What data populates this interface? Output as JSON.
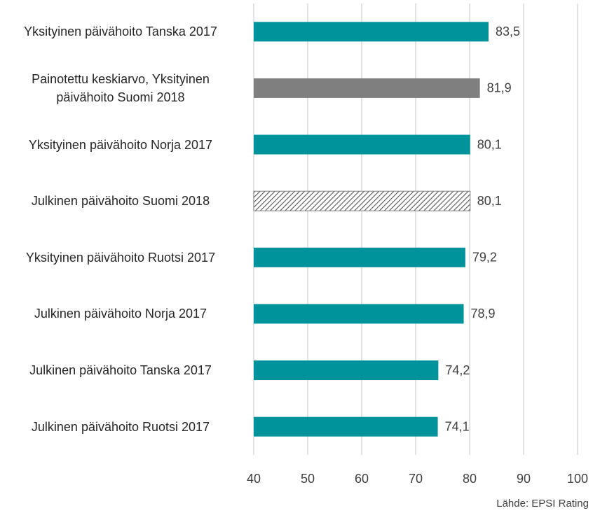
{
  "chart_data": {
    "type": "hbar",
    "categories": [
      "Yksityinen päivähoito Tanska 2017",
      "Painotettu keskiarvo, Yksityinen\npäivähoito Suomi 2018",
      "Yksityinen päivähoito Norja 2017",
      "Julkinen päivähoito Suomi 2018",
      "Yksityinen päivähoito Ruotsi 2017",
      "Julkinen päivähoito Norja 2017",
      "Julkinen päivähoito Tanska 2017",
      "Julkinen päivähoito Ruotsi 2017"
    ],
    "values": [
      83.5,
      81.9,
      80.1,
      80.1,
      79.2,
      78.9,
      74.2,
      74.1
    ],
    "value_labels": [
      "83,5",
      "81,9",
      "80,1",
      "80,1",
      "79,2",
      "78,9",
      "74,2",
      "74,1"
    ],
    "colors": [
      "#00939c",
      "#7f7f7f",
      "#00939c",
      "#7f7f7f",
      "#00939c",
      "#00939c",
      "#00939c",
      "#00939c"
    ],
    "patterns": [
      "solid",
      "solid",
      "solid",
      "hatched",
      "solid",
      "solid",
      "solid",
      "solid"
    ],
    "xlim": [
      40,
      100
    ],
    "xticks": [
      40,
      50,
      60,
      70,
      80,
      90,
      100
    ],
    "grid": true,
    "source": "Lähde: EPSI Rating"
  }
}
